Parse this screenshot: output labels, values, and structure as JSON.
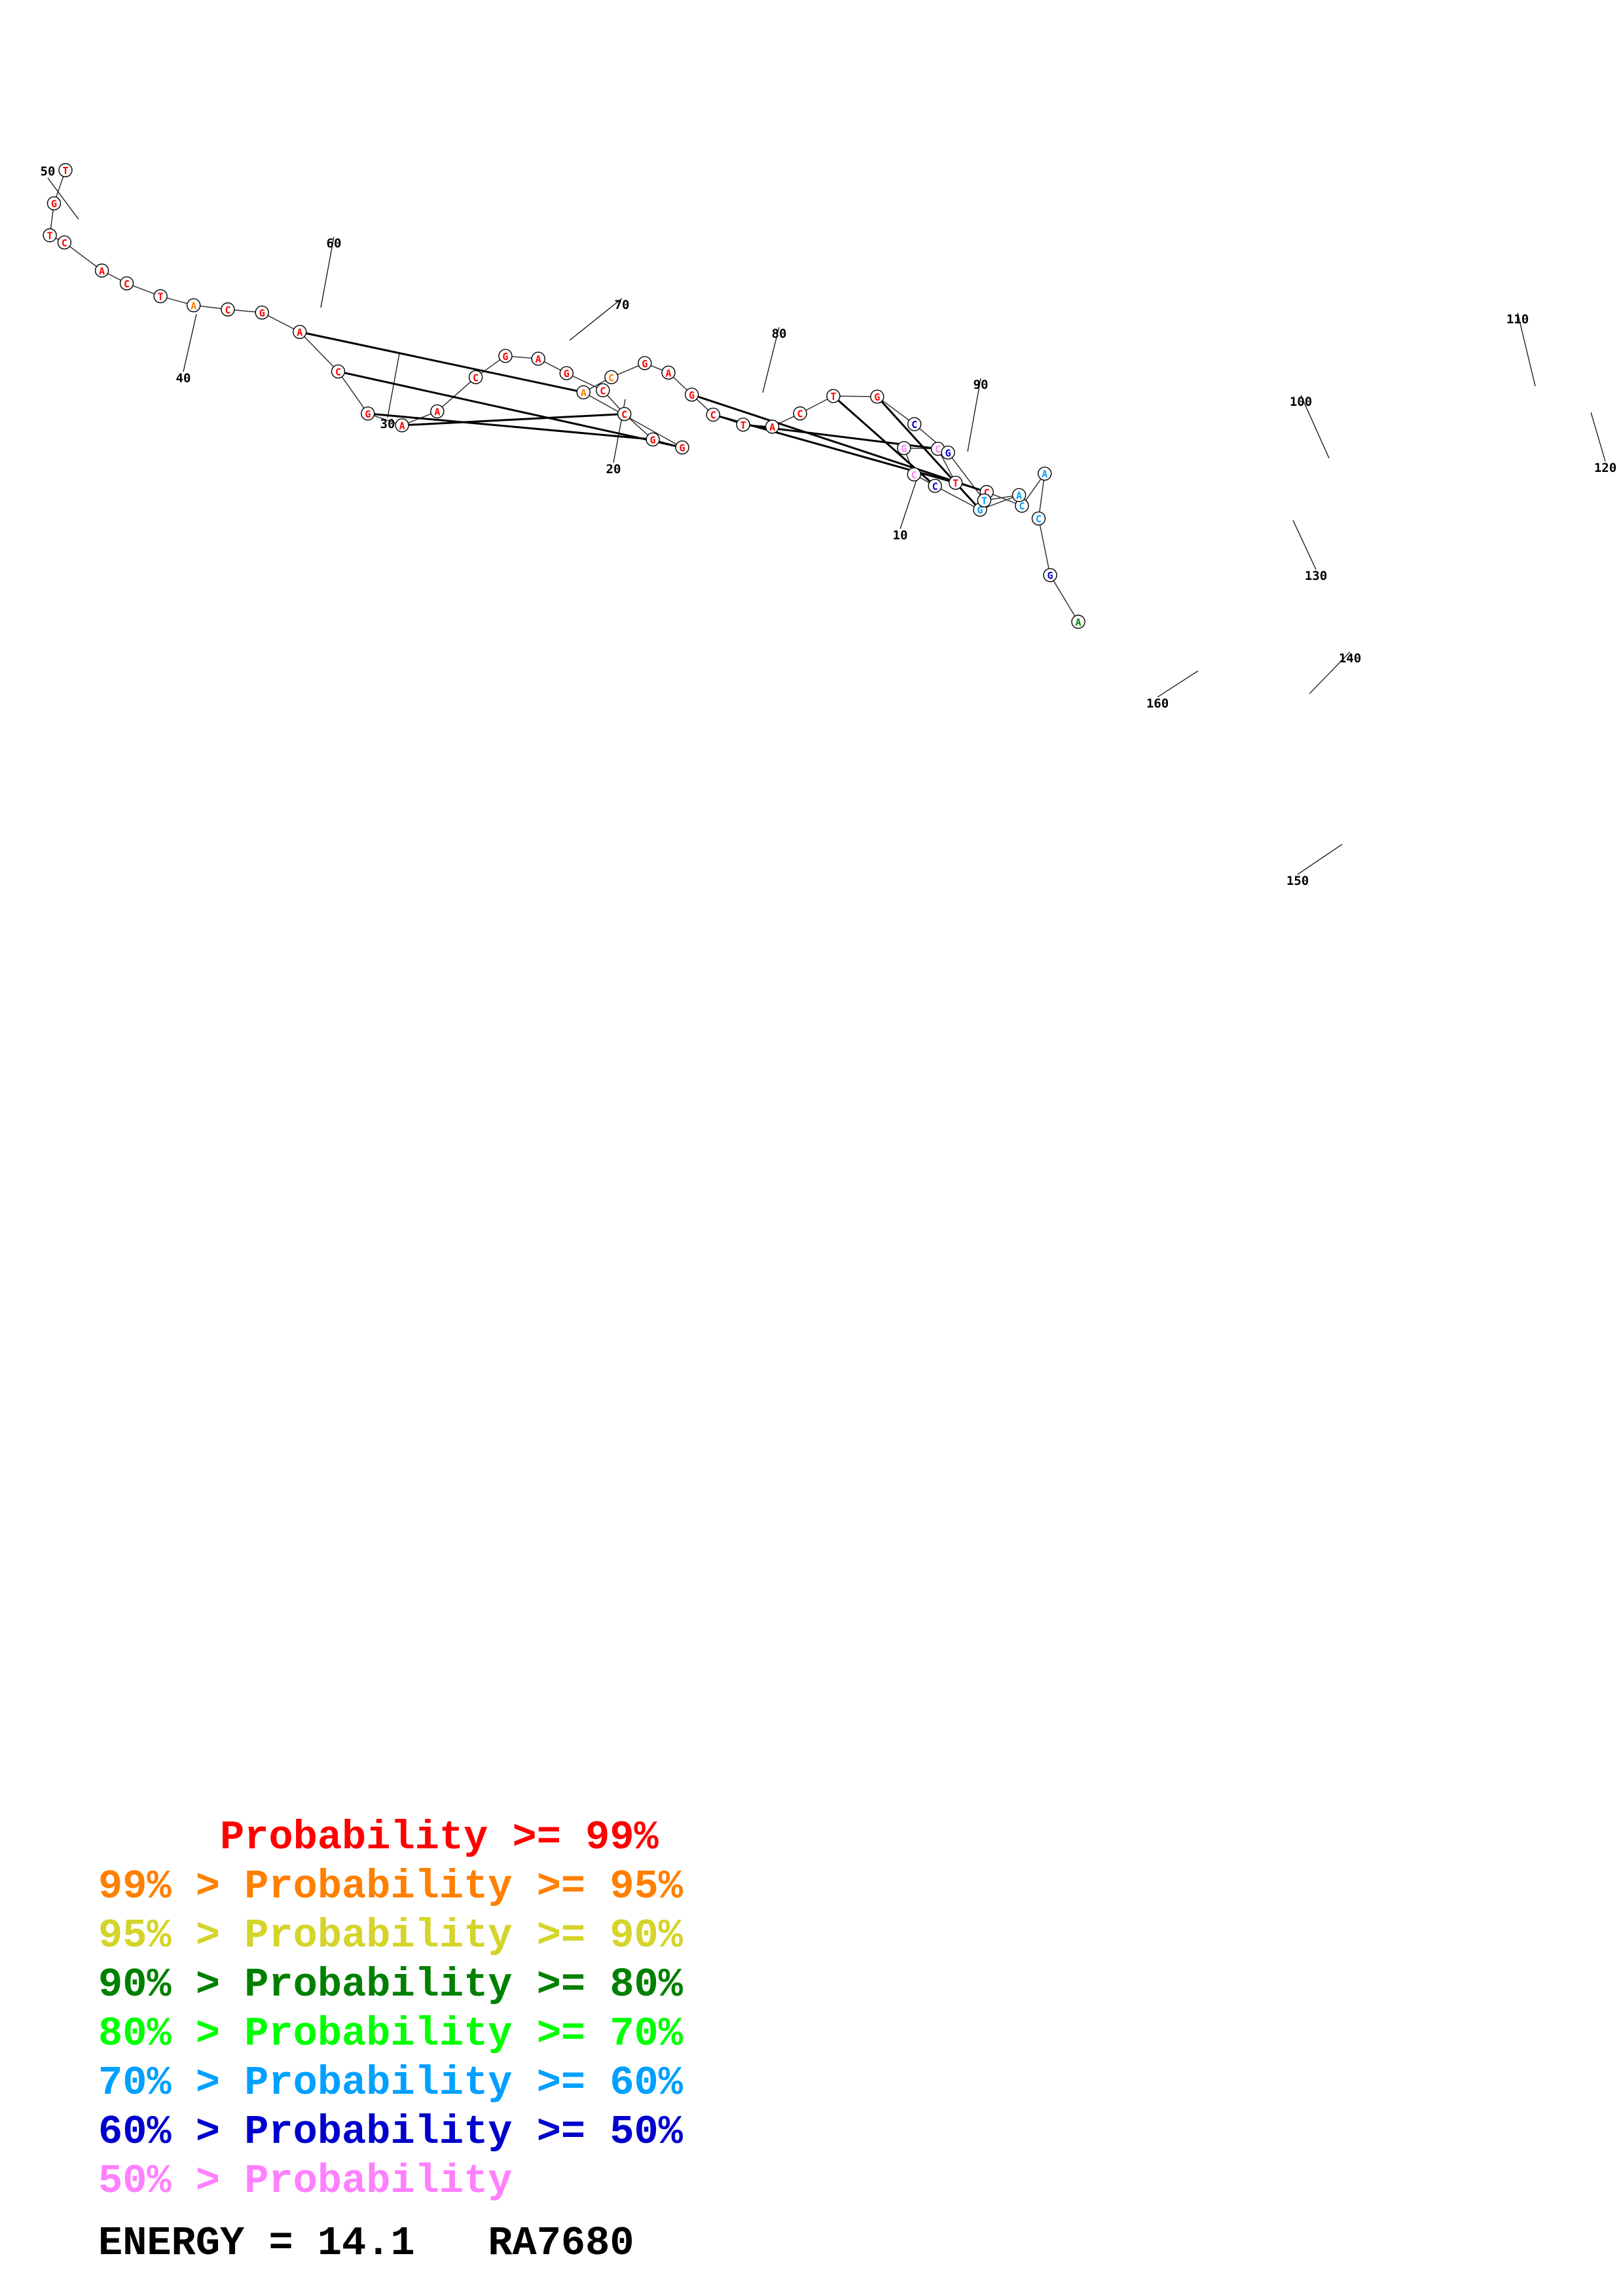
{
  "colors": {
    "p99": "#ff0000",
    "p95": "#ff8000",
    "p90": "#d4d42a",
    "p80": "#008000",
    "p70": "#00ff00",
    "p60": "#00a0ff",
    "p50": "#0000cc",
    "plow": "#ff80ff"
  },
  "legend": {
    "rows": [
      {
        "text": "     Probability >= 99%",
        "color_key": "p99"
      },
      {
        "text": "99% > Probability >= 95%",
        "color_key": "p95"
      },
      {
        "text": "95% > Probability >= 90%",
        "color_key": "p90"
      },
      {
        "text": "90% > Probability >= 80%",
        "color_key": "p80"
      },
      {
        "text": "80% > Probability >= 70%",
        "color_key": "p70"
      },
      {
        "text": "70% > Probability >= 60%",
        "color_key": "p60"
      },
      {
        "text": "60% > Probability >= 50%",
        "color_key": "p50"
      },
      {
        "text": "50% > Probability",
        "color_key": "plow"
      }
    ]
  },
  "footer": {
    "energy": "ENERGY = 14.1",
    "name": "RA7680"
  },
  "structure": {
    "position_labels": [
      "10",
      "20",
      "30",
      "40",
      "50",
      "60",
      "70",
      "80",
      "90",
      "100",
      "110",
      "120",
      "130",
      "140",
      "150",
      "160"
    ],
    "nucleotides": [
      {
        "base": "A",
        "color_key": "p80"
      },
      {
        "base": "G",
        "color_key": "p50"
      },
      {
        "base": "C",
        "color_key": "p60"
      },
      {
        "base": "A",
        "color_key": "p60"
      },
      {
        "base": "C",
        "color_key": "p60"
      },
      {
        "base": "C",
        "color_key": "p99"
      },
      {
        "base": "T",
        "color_key": "p99"
      },
      {
        "base": "C",
        "color_key": "plow"
      },
      {
        "base": "G",
        "color_key": "plow"
      },
      {
        "base": "C",
        "color_key": "plow"
      },
      {
        "base": "C",
        "color_key": "p50"
      },
      {
        "base": "G",
        "color_key": "p60"
      },
      {
        "base": "A",
        "color_key": "p60"
      },
      {
        "base": "T",
        "color_key": "p60"
      },
      {
        "base": "G",
        "color_key": "p50"
      },
      {
        "base": "C",
        "color_key": "p50"
      },
      {
        "base": "G",
        "color_key": "p99"
      },
      {
        "base": "T",
        "color_key": "p99"
      },
      {
        "base": "C",
        "color_key": "p99"
      },
      {
        "base": "A",
        "color_key": "p99"
      },
      {
        "base": "T",
        "color_key": "p99"
      },
      {
        "base": "C",
        "color_key": "p99"
      },
      {
        "base": "G",
        "color_key": "p99"
      },
      {
        "base": "A",
        "color_key": "p99"
      },
      {
        "base": "G",
        "color_key": "p99"
      },
      {
        "base": "C",
        "color_key": "p95"
      },
      {
        "base": "A",
        "color_key": "p95"
      },
      {
        "base": "G",
        "color_key": "p99"
      },
      {
        "base": "G",
        "color_key": "p99"
      },
      {
        "base": "C",
        "color_key": "p99"
      },
      {
        "base": "C",
        "color_key": "p99"
      },
      {
        "base": "G",
        "color_key": "p99"
      },
      {
        "base": "A",
        "color_key": "p99"
      },
      {
        "base": "G",
        "color_key": "p99"
      },
      {
        "base": "C",
        "color_key": "p99"
      },
      {
        "base": "A",
        "color_key": "p99"
      },
      {
        "base": "A",
        "color_key": "p99"
      },
      {
        "base": "G",
        "color_key": "p99"
      },
      {
        "base": "C",
        "color_key": "p99"
      },
      {
        "base": "A",
        "color_key": "p99"
      },
      {
        "base": "G",
        "color_key": "p99"
      },
      {
        "base": "C",
        "color_key": "p99"
      },
      {
        "base": "A",
        "color_key": "p95"
      },
      {
        "base": "T",
        "color_key": "p99"
      },
      {
        "base": "C",
        "color_key": "p99"
      },
      {
        "base": "A",
        "color_key": "p99"
      },
      {
        "base": "C",
        "color_key": "p99"
      },
      {
        "base": "T",
        "color_key": "p99"
      },
      {
        "base": "G",
        "color_key": "p99"
      },
      {
        "base": "T",
        "color_key": "p99"
      }
    ]
  }
}
